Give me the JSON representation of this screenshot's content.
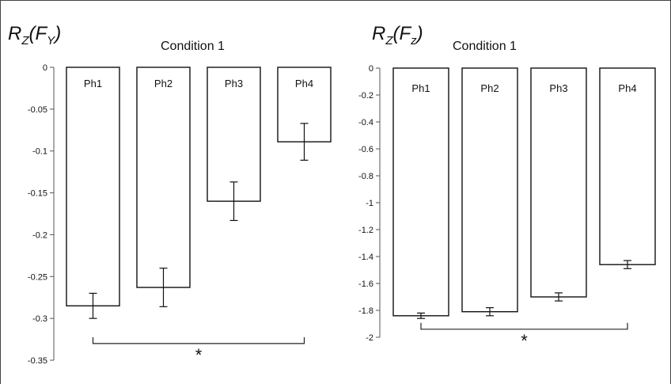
{
  "chart_data": [
    {
      "type": "bar",
      "title": {
        "main": "R",
        "sub1": "Z",
        "open": "(F",
        "sub2": "Y",
        "close": ")"
      },
      "subtitle": "Condition 1",
      "categories": [
        "Ph1",
        "Ph2",
        "Ph3",
        "Ph4"
      ],
      "values": [
        -0.285,
        -0.263,
        -0.16,
        -0.089
      ],
      "errors": [
        0.015,
        0.023,
        0.023,
        0.022
      ],
      "ylim": [
        -0.35,
        0
      ],
      "yticks": [
        0,
        -0.05,
        -0.1,
        -0.15,
        -0.2,
        -0.25,
        -0.3,
        -0.35
      ],
      "ytick_labels": [
        "0",
        "-0.05",
        "-0.1",
        "-0.15",
        "-0.2",
        "-0.25",
        "-0.3",
        "-0.35"
      ],
      "significance": {
        "from": "Ph1",
        "to": "Ph4",
        "y": -0.33,
        "label": "*"
      },
      "bar_color": "#ffffff",
      "line_color": "#111111"
    },
    {
      "type": "bar",
      "title": {
        "main": "R",
        "sub1": "Z",
        "open": "(F",
        "sub2": "z",
        "close": ")"
      },
      "subtitle": "Condition 1",
      "categories": [
        "Ph1",
        "Ph2",
        "Ph3",
        "Ph4"
      ],
      "values": [
        -1.84,
        -1.81,
        -1.7,
        -1.46
      ],
      "errors": [
        0.02,
        0.03,
        0.03,
        0.03
      ],
      "ylim": [
        -2,
        0
      ],
      "yticks": [
        0,
        -0.2,
        -0.4,
        -0.6,
        -0.8,
        -1,
        -1.2,
        -1.4,
        -1.6,
        -1.8,
        -2
      ],
      "ytick_labels": [
        "0",
        "-0.2",
        "-0.4",
        "-0.6",
        "-0.8",
        "-1",
        "-1.2",
        "-1.4",
        "-1.6",
        "-1.8",
        "-2"
      ],
      "significance": {
        "from": "Ph1",
        "to": "Ph4",
        "y": -1.94,
        "label": "*"
      },
      "bar_color": "#ffffff",
      "line_color": "#111111"
    }
  ]
}
